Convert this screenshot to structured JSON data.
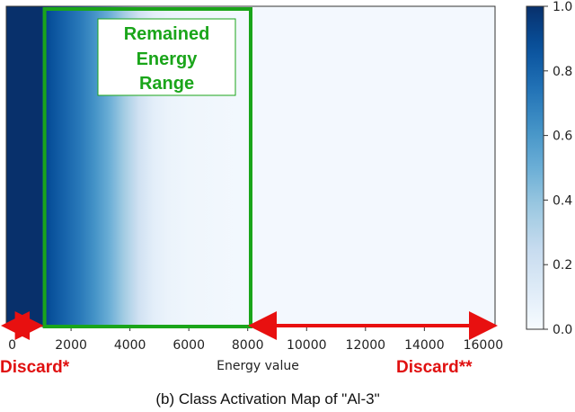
{
  "chart_data": {
    "type": "heatmap",
    "title": "",
    "xlabel": "Energy value",
    "ylabel": "",
    "xlim": [
      -200,
      16400
    ],
    "x_ticks": [
      0,
      2000,
      4000,
      6000,
      8000,
      10000,
      12000,
      14000,
      16000
    ],
    "x_tick_labels": [
      "0",
      "2000",
      "4000",
      "6000",
      "8000",
      "10000",
      "12000",
      "14000",
      "16000"
    ],
    "colorbar": {
      "range": [
        0.0,
        1.0
      ],
      "ticks": [
        0.0,
        0.2,
        0.4,
        0.6,
        0.8,
        1.0
      ],
      "tick_labels": [
        "0.0",
        "0.2",
        "0.4",
        "0.6",
        "0.8",
        "1.0"
      ],
      "colormap": "Blues"
    },
    "activation_profile": {
      "x": [
        -200,
        1000,
        1050,
        1300,
        1800,
        2300,
        2800,
        3300,
        3800,
        4300,
        4800,
        5300,
        6000,
        8000,
        16400
      ],
      "value": [
        1.0,
        1.0,
        0.95,
        0.88,
        0.8,
        0.72,
        0.62,
        0.5,
        0.36,
        0.2,
        0.1,
        0.06,
        0.04,
        0.02,
        0.02
      ]
    },
    "annotations": {
      "box_label": [
        "Remained",
        "Energy",
        "Range"
      ],
      "remained_range": [
        1100,
        8100
      ],
      "discard_low_label": "Discard*",
      "discard_low_range": [
        -200,
        1100
      ],
      "discard_high_label": "Discard**",
      "discard_high_range": [
        8100,
        16400
      ]
    }
  },
  "caption": "(b) Class Activation Map of \"Al-3\"",
  "colors": {
    "box_green": "#1aa51a",
    "discard_red": "#e81010"
  }
}
